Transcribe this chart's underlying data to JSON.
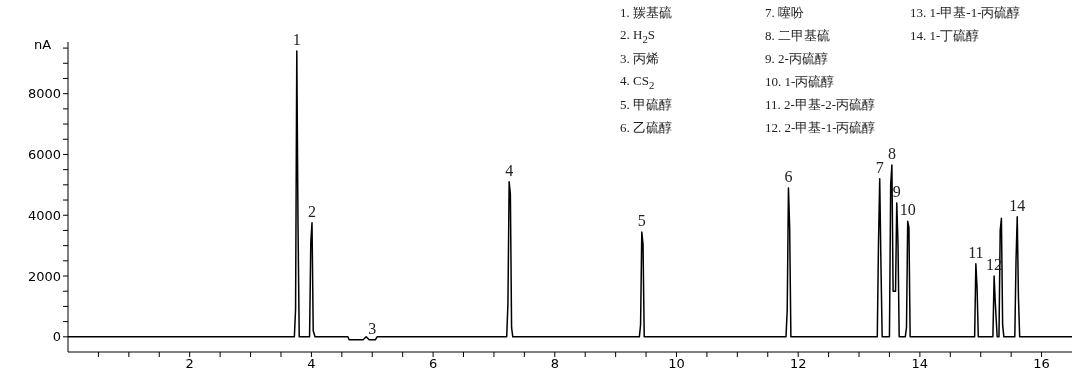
{
  "chart_data": {
    "type": "line",
    "ylabel": "nA",
    "x": [
      0,
      3.72,
      3.74,
      3.76,
      3.78,
      3.8,
      3.97,
      3.99,
      4.01,
      4.03,
      4.06,
      4.6,
      4.62,
      4.85,
      4.9,
      4.95,
      5.05,
      5.08,
      7.21,
      7.23,
      7.25,
      7.27,
      7.29,
      7.31,
      9.39,
      9.41,
      9.43,
      9.45,
      9.47,
      11.8,
      11.82,
      11.84,
      11.86,
      11.88,
      13.3,
      13.32,
      13.34,
      13.36,
      13.38,
      13.5,
      13.52,
      13.54,
      13.56,
      13.6,
      13.62,
      13.64,
      13.66,
      13.76,
      13.78,
      13.8,
      13.82,
      13.84,
      14.9,
      14.92,
      14.94,
      14.96,
      15.2,
      15.22,
      15.24,
      15.27,
      15.3,
      15.32,
      15.34,
      15.36,
      15.38,
      15.56,
      15.58,
      15.6,
      15.62,
      15.64,
      16.5
    ],
    "series": [
      {
        "color": "#000000",
        "values": [
          0,
          0,
          900,
          9400,
          3700,
          0,
          0,
          3100,
          3750,
          200,
          0,
          0,
          -100,
          -100,
          0,
          -100,
          -100,
          0,
          0,
          1100,
          5100,
          4700,
          300,
          0,
          0,
          400,
          3450,
          3050,
          0,
          0,
          900,
          4900,
          3600,
          0,
          0,
          3100,
          5200,
          2400,
          0,
          0,
          5000,
          5650,
          1500,
          1500,
          4400,
          3100,
          0,
          0,
          300,
          3800,
          3600,
          0,
          0,
          2400,
          1600,
          0,
          0,
          2000,
          1100,
          0,
          0,
          3500,
          3900,
          400,
          0,
          0,
          2500,
          3950,
          1300,
          0,
          0
        ]
      }
    ],
    "xlim": [
      0,
      16.5
    ],
    "xticks": [
      {
        "value": 0.5,
        "label": null
      },
      {
        "value": 1,
        "label": null
      },
      {
        "value": 1.5,
        "label": null
      },
      2,
      {
        "value": 2.5,
        "label": null
      },
      {
        "value": 3,
        "label": null
      },
      {
        "value": 3.5,
        "label": null
      },
      4,
      {
        "value": 4.5,
        "label": null
      },
      {
        "value": 5,
        "label": null
      },
      {
        "value": 5.5,
        "label": null
      },
      6,
      {
        "value": 6.5,
        "label": null
      },
      {
        "value": 7,
        "label": null
      },
      {
        "value": 7.5,
        "label": null
      },
      8,
      {
        "value": 8.5,
        "label": null
      },
      {
        "value": 9,
        "label": null
      },
      {
        "value": 9.5,
        "label": null
      },
      10,
      {
        "value": 10.5,
        "label": null
      },
      {
        "value": 11,
        "label": null
      },
      {
        "value": 11.5,
        "label": null
      },
      12,
      {
        "value": 12.5,
        "label": null
      },
      {
        "value": 13,
        "label": null
      },
      {
        "value": 13.5,
        "label": null
      },
      14,
      {
        "value": 14.5,
        "label": null
      },
      {
        "value": 15,
        "label": null
      },
      {
        "value": 15.5,
        "label": null
      },
      16
    ],
    "ylim": [
      -500,
      9700
    ],
    "yticks": [
      0,
      {
        "value": 500,
        "label": null
      },
      {
        "value": 1000,
        "label": null
      },
      {
        "value": 1500,
        "label": null
      },
      2000,
      {
        "value": 2500,
        "label": null
      },
      {
        "value": 3000,
        "label": null
      },
      {
        "value": 3500,
        "label": null
      },
      4000,
      {
        "value": 4500,
        "label": null
      },
      {
        "value": 5000,
        "label": null
      },
      {
        "value": 5500,
        "label": null
      },
      6000,
      {
        "value": 6500,
        "label": null
      },
      {
        "value": 7000,
        "label": null
      },
      {
        "value": 7500,
        "label": null
      },
      8000,
      {
        "value": 8500,
        "label": null
      },
      {
        "value": 9000,
        "label": null
      },
      {
        "value": 9500,
        "label": null
      }
    ],
    "grid": false,
    "legend": false,
    "marker": "none",
    "line_style": "solid",
    "annotations": [
      {
        "text": "1",
        "x": 3.76,
        "y": 9400
      },
      {
        "text": "2",
        "x": 4.01,
        "y": 3750
      },
      {
        "text": "3",
        "x": 5.0,
        "y": -100
      },
      {
        "text": "4",
        "x": 7.25,
        "y": 5100
      },
      {
        "text": "5",
        "x": 9.43,
        "y": 3450
      },
      {
        "text": "6",
        "x": 11.84,
        "y": 4900
      },
      {
        "text": "7",
        "x": 13.34,
        "y": 5200
      },
      {
        "text": "8",
        "x": 13.54,
        "y": 5650
      },
      {
        "text": "9",
        "x": 13.62,
        "y": 4400
      },
      {
        "text": "10",
        "x": 13.8,
        "y": 3800
      },
      {
        "text": "11",
        "x": 14.92,
        "y": 2400
      },
      {
        "text": "12",
        "x": 15.22,
        "y": 2000
      },
      {
        "text": "14",
        "x": 15.6,
        "y": 3950
      },
      "1. 羰基硫",
      "2. H$_{2}$S",
      "3. 丙烯",
      "4. CS$_{2}$",
      "5. 甲硫醇",
      "6. 乙硫醇",
      "7. 噻吩",
      "8. 二甲基硫",
      "9. 2-丙硫醇",
      "10. 1-丙硫醇",
      "11. 2-甲基-2-丙硫醇",
      "12. 2-甲基-1-丙硫醇",
      "13. 1-甲基-1-丙硫醇",
      "14. 1-丁硫醇"
    ]
  }
}
